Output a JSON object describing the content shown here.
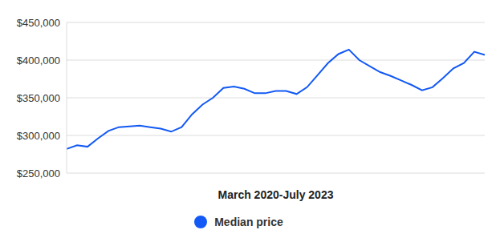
{
  "chart_data": {
    "type": "line",
    "x_label": "March 2020-July 2023",
    "categories": [
      null,
      null,
      null,
      null,
      null,
      null,
      null,
      null,
      null,
      null,
      null,
      null,
      null,
      null,
      null,
      null,
      null,
      null,
      null,
      null,
      null,
      null,
      null,
      null,
      null,
      null,
      null,
      null,
      null,
      null,
      null,
      null,
      null,
      null,
      null,
      null,
      null,
      null,
      null,
      null,
      null
    ],
    "series": [
      {
        "name": "Median price",
        "color": "#1259f5",
        "values": [
          282000,
          287000,
          285000,
          296000,
          306000,
          311000,
          312000,
          313000,
          311000,
          309000,
          305000,
          311000,
          328000,
          341000,
          350000,
          363000,
          365000,
          362000,
          356000,
          356000,
          359000,
          359000,
          355000,
          364000,
          380000,
          396000,
          408000,
          414000,
          400000,
          392000,
          384000,
          379000,
          373000,
          367000,
          360000,
          364000,
          376000,
          389000,
          396000,
          411000,
          407000
        ]
      }
    ],
    "ylim": [
      250000,
      450000
    ],
    "yticks": [
      {
        "value": 250000,
        "label": "$250,000"
      },
      {
        "value": 300000,
        "label": "$300,000"
      },
      {
        "value": 350000,
        "label": "$350,000"
      },
      {
        "value": 400000,
        "label": "$400,000"
      },
      {
        "value": 450000,
        "label": "$450,000"
      }
    ],
    "grid": true,
    "legend": "bottom",
    "tick_labels": "y"
  }
}
